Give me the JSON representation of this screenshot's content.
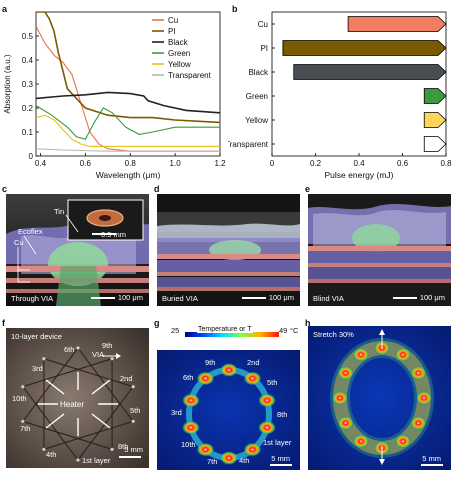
{
  "panel_letters": {
    "a": "a",
    "b": "b",
    "c": "c",
    "d": "d",
    "e": "e",
    "f": "f",
    "g": "g",
    "h": "h"
  },
  "chart_data": [
    {
      "type": "line",
      "xlabel": "Wavelength (μm)",
      "ylabel": "Absorption (a.u.)",
      "xlim": [
        0.38,
        1.2
      ],
      "ylim": [
        0,
        0.6
      ],
      "xticks": [
        0.4,
        0.6,
        0.8,
        1.0,
        1.2
      ],
      "yticks": [
        0,
        0.1,
        0.2,
        0.3,
        0.4,
        0.5
      ],
      "xtick_labels": [
        "0.4",
        "0.6",
        "0.8",
        "1.0",
        "1.2"
      ],
      "ytick_labels": [
        "0",
        "0.1",
        "0.2",
        "0.3",
        "0.4",
        "0.5"
      ],
      "legend_position": "top-right",
      "series": [
        {
          "name": "Cu",
          "color": "#e8734f",
          "x": [
            0.38,
            0.42,
            0.46,
            0.5,
            0.54,
            0.58,
            0.62,
            0.66,
            0.7,
            0.8,
            1.0,
            1.2
          ],
          "y": [
            0.54,
            0.47,
            0.42,
            0.39,
            0.34,
            0.22,
            0.1,
            0.05,
            0.03,
            0.02,
            0.02,
            0.02
          ]
        },
        {
          "name": "PI",
          "color": "#7a5a00",
          "x": [
            0.38,
            0.4,
            0.42,
            0.44,
            0.46,
            0.48,
            0.52,
            0.6,
            0.7,
            0.8,
            0.9,
            1.0,
            1.2
          ],
          "y": [
            0.6,
            0.6,
            0.6,
            0.57,
            0.52,
            0.43,
            0.28,
            0.2,
            0.17,
            0.16,
            0.16,
            0.15,
            0.14
          ]
        },
        {
          "name": "Black",
          "color": "#222222",
          "x": [
            0.38,
            0.5,
            0.6,
            0.7,
            0.8,
            0.86,
            0.88,
            0.95,
            1.05,
            1.2
          ],
          "y": [
            0.24,
            0.25,
            0.255,
            0.265,
            0.26,
            0.25,
            0.23,
            0.21,
            0.19,
            0.18
          ]
        },
        {
          "name": "Green",
          "color": "#3a9a3a",
          "x": [
            0.38,
            0.45,
            0.52,
            0.56,
            0.6,
            0.64,
            0.68,
            0.72,
            0.78,
            0.84,
            0.9,
            1.0,
            1.2
          ],
          "y": [
            0.21,
            0.17,
            0.12,
            0.08,
            0.07,
            0.14,
            0.2,
            0.18,
            0.12,
            0.09,
            0.1,
            0.12,
            0.12
          ]
        },
        {
          "name": "Yellow",
          "color": "#e8c020",
          "x": [
            0.38,
            0.42,
            0.46,
            0.5,
            0.54,
            0.58,
            0.62,
            0.7,
            0.8,
            1.0,
            1.2
          ],
          "y": [
            0.16,
            0.17,
            0.15,
            0.11,
            0.07,
            0.05,
            0.04,
            0.04,
            0.04,
            0.04,
            0.04
          ]
        },
        {
          "name": "Transparent",
          "color": "#b8b8b8",
          "x": [
            0.38,
            0.5,
            0.7,
            0.9,
            1.2
          ],
          "y": [
            0.03,
            0.025,
            0.02,
            0.02,
            0.02
          ]
        }
      ]
    },
    {
      "type": "bar",
      "orientation": "horizontal",
      "xlabel": "Pulse energy (mJ)",
      "xlim": [
        0,
        0.8
      ],
      "xticks": [
        0,
        0.2,
        0.4,
        0.6,
        0.8
      ],
      "xtick_labels": [
        "0",
        "0.2",
        "0.4",
        "0.6",
        "0.8"
      ],
      "categories": [
        "Cu",
        "PI",
        "Black",
        "Green",
        "Yellow",
        "Transparent"
      ],
      "ranges": [
        [
          0.35,
          0.8
        ],
        [
          0.05,
          0.8
        ],
        [
          0.1,
          0.8
        ],
        [
          0.7,
          0.8
        ],
        [
          0.7,
          0.8
        ],
        [
          0.7,
          0.8
        ]
      ],
      "colors": [
        "#f07f62",
        "#7a5a00",
        "#4a4d52",
        "#3f9a3f",
        "#ffd45a",
        "#ffffff"
      ]
    }
  ],
  "micrographs": {
    "c": {
      "caption": "Through VIA",
      "scale": "100 μm",
      "inset_scale": "0.5 mm",
      "labels": {
        "ecoflex": "Ecoflex",
        "tin": "Tin",
        "cu": "Cu"
      }
    },
    "d": {
      "caption": "Buried VIA",
      "scale": "100 μm"
    },
    "e": {
      "caption": "Blind VIA",
      "scale": "100 μm"
    }
  },
  "device": {
    "title": "10-layer device",
    "layers": {
      "l6": "6th",
      "l9": "9th",
      "l3": "3rd",
      "l2": "2nd",
      "l10": "10th",
      "l5": "5th",
      "l7": "7th",
      "l8": "8th",
      "l4": "4th",
      "l1": "1st layer"
    },
    "via": "VIA",
    "heater": "Heater",
    "scale": "5 mm"
  },
  "thermal": {
    "colorbar_min": "25",
    "colorbar_max": "49",
    "colorbar_label": "Temperature or T",
    "unit": "°C",
    "labels": {
      "l9": "9th",
      "l2": "2nd",
      "l6": "6th",
      "l5": "5th",
      "l3": "3rd",
      "l8": "8th",
      "l10": "10th",
      "l1": "1st layer",
      "l7": "7th",
      "l4": "4th"
    },
    "scale": "5 mm"
  },
  "stretch": {
    "label": "Stretch 30%",
    "scale": "5 mm"
  }
}
